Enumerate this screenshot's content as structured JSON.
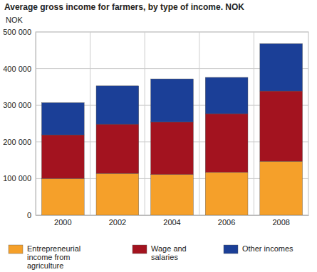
{
  "chart_data": {
    "type": "bar",
    "title": "Average gross income for farmers, by type of income. NOK",
    "y_label": "NOK",
    "categories": [
      "2000",
      "2002",
      "2004",
      "2006",
      "2008"
    ],
    "series": [
      {
        "name": "Entrepreneurial income from agriculture",
        "color": "#f5a02a",
        "values": [
          100000,
          114000,
          111000,
          117000,
          147000
        ]
      },
      {
        "name": "Wage and salaries",
        "color": "#a3131f",
        "values": [
          119000,
          134000,
          143000,
          160000,
          192000
        ]
      },
      {
        "name": "Other incomes",
        "color": "#1b3f97",
        "values": [
          88000,
          105000,
          118000,
          99000,
          129000
        ]
      }
    ],
    "ylim": [
      0,
      500000
    ],
    "yticks": [
      0,
      {
        "value": 100000,
        "label": "100 000"
      },
      {
        "value": 200000,
        "label": "200 000"
      },
      {
        "value": 300000,
        "label": "300 000"
      },
      {
        "value": 400000,
        "label": "400 000"
      },
      {
        "value": 500000,
        "label": "500 000"
      }
    ],
    "stacked": true,
    "grid": true,
    "legend": "bottom"
  }
}
